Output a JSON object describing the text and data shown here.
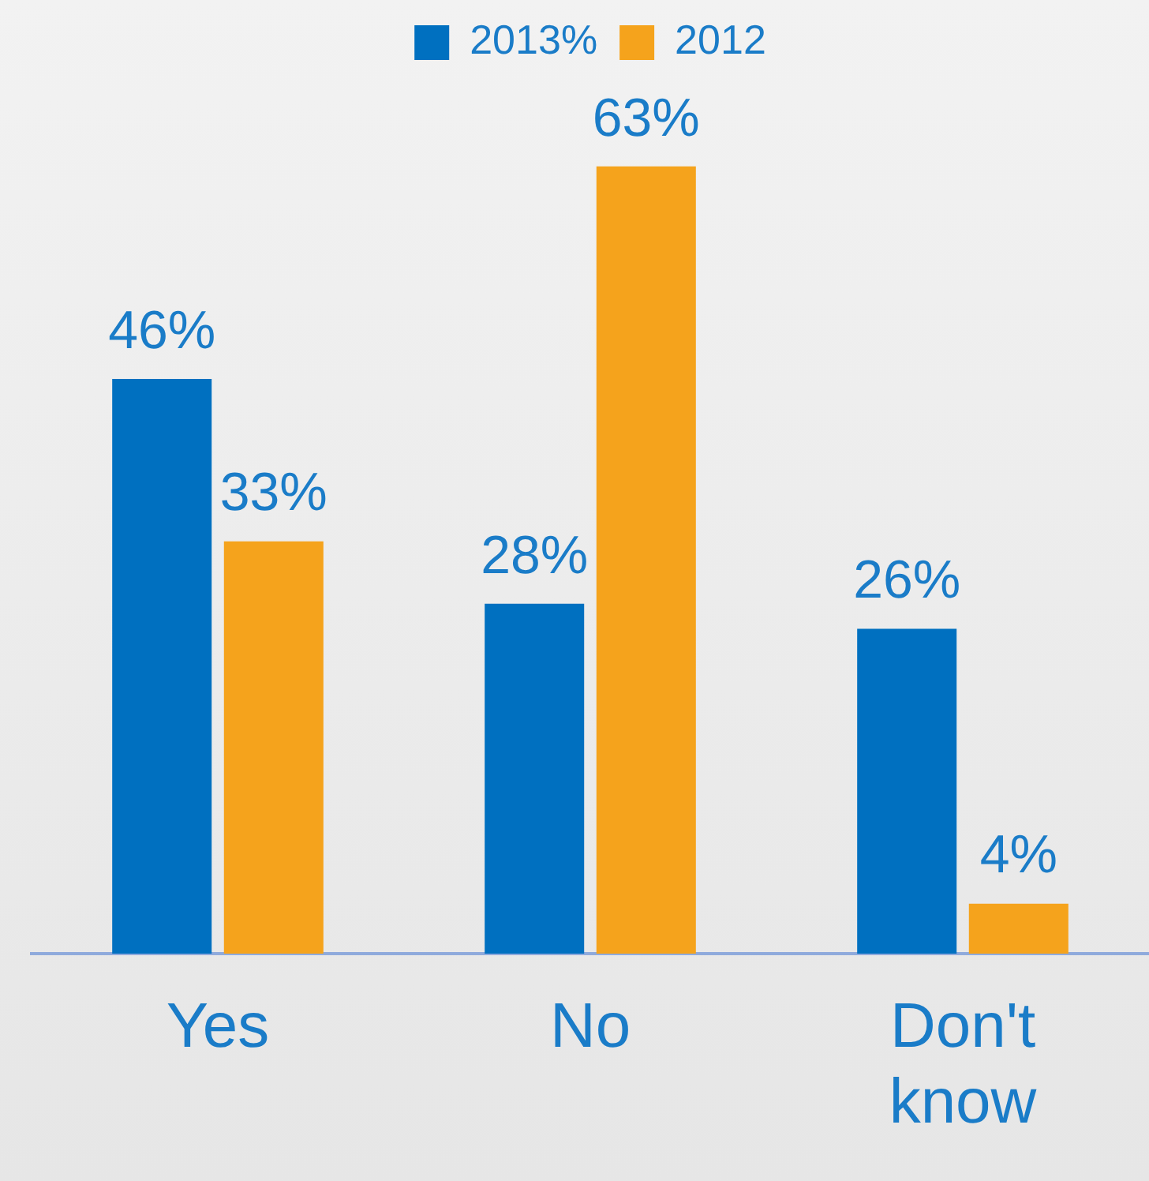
{
  "chart_data": {
    "type": "bar",
    "categories": [
      "Yes",
      "No",
      "Don't know"
    ],
    "series": [
      {
        "name": "2013%",
        "color": "#0070c0",
        "values": [
          46,
          28,
          26
        ],
        "value_labels": [
          "46%",
          "28%",
          "26%"
        ]
      },
      {
        "name": "2012",
        "color": "#f5a31c",
        "values": [
          33,
          63,
          4
        ],
        "value_labels": [
          "33%",
          "63%",
          "4%"
        ]
      }
    ],
    "legend": "top",
    "grid": false
  }
}
